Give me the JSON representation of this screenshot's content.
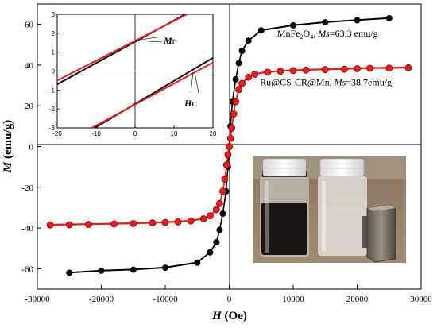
{
  "chart_data": {
    "type": "line",
    "x_axis_title": {
      "italic": "H",
      "rest": " (Oe)"
    },
    "y_axis_title": {
      "italic": "M",
      "rest": " (emu/g)"
    },
    "xlim": [
      -30000,
      30000
    ],
    "ylim": [
      -70,
      70
    ],
    "x_ticks": [
      "-30000",
      "-20000",
      "-10000",
      "0",
      "10000",
      "20000",
      "30000"
    ],
    "y_ticks": [
      "-60",
      "-40",
      "-20",
      "0",
      "20",
      "40",
      "60"
    ],
    "series": [
      {
        "id": "mnfe2o4",
        "color": "#000000",
        "x": [
          -25000,
          -20000,
          -15000,
          -10000,
          -5000,
          -3000,
          -2000,
          -1500,
          -1000,
          -500,
          -200,
          0,
          200,
          500,
          1000,
          1500,
          2000,
          3000,
          5000,
          10000,
          15000,
          20000,
          25000
        ],
        "y": [
          -62,
          -61,
          -60.5,
          -59.5,
          -57,
          -52,
          -47,
          -41,
          -33,
          -22,
          -10,
          0,
          10,
          22,
          33,
          41,
          47,
          52,
          57,
          59.5,
          61,
          62,
          63
        ]
      },
      {
        "id": "ru_cs_cr_mn",
        "color": "#ee1c1c",
        "x": [
          -28000,
          -25000,
          -22000,
          -18000,
          -15000,
          -12000,
          -10000,
          -8000,
          -6000,
          -4000,
          -3000,
          -2000,
          -1500,
          -1000,
          -700,
          -400,
          -200,
          0,
          200,
          400,
          700,
          1000,
          1500,
          2000,
          3000,
          4000,
          6000,
          8000,
          10000,
          12000,
          15000,
          18000,
          20000,
          22000,
          25000,
          28000
        ],
        "y": [
          -38.5,
          -38.4,
          -38.2,
          -38,
          -37.8,
          -37.5,
          -37.3,
          -37,
          -36.5,
          -35.5,
          -34,
          -31,
          -28,
          -22,
          -16,
          -9,
          -4,
          0,
          4,
          9,
          16,
          22,
          28,
          31,
          34,
          35.5,
          36.5,
          37,
          37.3,
          37.5,
          37.8,
          38,
          38.2,
          38.4,
          38.5,
          38.7
        ]
      }
    ],
    "annotations": [
      {
        "id": "mnfe2o4",
        "x": 7500,
        "y": 54,
        "segments": [
          {
            "t": "MnFe",
            "s": "normal"
          },
          {
            "t": "2",
            "s": "sub"
          },
          {
            "t": "O",
            "s": "normal"
          },
          {
            "t": "4",
            "s": "sub"
          },
          {
            "t": ", ",
            "s": "normal"
          },
          {
            "t": "Ms",
            "s": "italic"
          },
          {
            "t": "=63.3  emu/g",
            "s": "normal"
          }
        ]
      },
      {
        "id": "ru",
        "x": 4800,
        "y": 30,
        "segments": [
          {
            "t": "Ru@CS-CR@Mn, ",
            "s": "normal"
          },
          {
            "t": "Ms",
            "s": "italic"
          },
          {
            "t": "=38.7emu/g",
            "s": "normal"
          }
        ]
      }
    ],
    "inset": {
      "xlim": [
        -20,
        20
      ],
      "ylim": [
        -3,
        3
      ],
      "x_ticks": [
        "-20",
        "-10",
        "0",
        "10",
        "20"
      ],
      "y_ticks": [
        "-3",
        "-2",
        "-1",
        "0",
        "1",
        "2",
        "3"
      ],
      "mr_label": {
        "italic": "M",
        "rest": "r"
      },
      "hc_label": {
        "italic": "H",
        "rest": "c"
      },
      "lines": [
        {
          "color": "#000000",
          "x": [
            -20,
            20
          ],
          "y": [
            -0.7,
            3.8
          ]
        },
        {
          "color": "#ee1c1c",
          "x": [
            -20,
            20
          ],
          "y": [
            -0.5,
            3.7
          ]
        },
        {
          "color": "#000000",
          "x": [
            -12,
            20
          ],
          "y": [
            -3.2,
            0.7
          ]
        },
        {
          "color": "#ee1c1c",
          "x": [
            -12,
            20
          ],
          "y": [
            -3.1,
            0.45
          ]
        }
      ]
    }
  }
}
